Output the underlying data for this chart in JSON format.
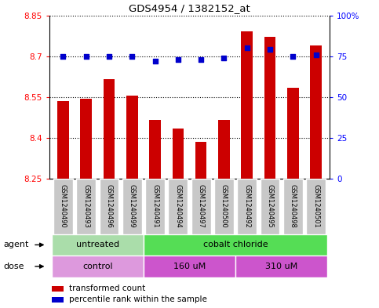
{
  "title": "GDS4954 / 1382152_at",
  "samples": [
    "GSM1240490",
    "GSM1240493",
    "GSM1240496",
    "GSM1240499",
    "GSM1240491",
    "GSM1240494",
    "GSM1240497",
    "GSM1240500",
    "GSM1240492",
    "GSM1240495",
    "GSM1240498",
    "GSM1240501"
  ],
  "transformed_counts": [
    8.535,
    8.545,
    8.615,
    8.555,
    8.465,
    8.435,
    8.385,
    8.465,
    8.79,
    8.77,
    8.585,
    8.74
  ],
  "percentile_ranks": [
    75,
    75,
    75,
    75,
    72,
    73,
    73,
    74,
    80,
    79,
    75,
    76
  ],
  "ylim_left": [
    8.25,
    8.85
  ],
  "ylim_right": [
    0,
    100
  ],
  "yticks_left": [
    8.25,
    8.4,
    8.55,
    8.7,
    8.85
  ],
  "yticks_right": [
    0,
    25,
    50,
    75,
    100
  ],
  "ytick_labels_left": [
    "8.25",
    "8.4",
    "8.55",
    "8.7",
    "8.85"
  ],
  "ytick_labels_right": [
    "0",
    "25",
    "50",
    "75",
    "100%"
  ],
  "hlines": [
    8.4,
    8.55,
    8.7,
    8.85
  ],
  "bar_color": "#cc0000",
  "dot_color": "#0000cc",
  "agent_groups": [
    {
      "label": "untreated",
      "start": 0,
      "end": 4,
      "color": "#aaddaa"
    },
    {
      "label": "cobalt chloride",
      "start": 4,
      "end": 12,
      "color": "#55dd55"
    }
  ],
  "dose_groups": [
    {
      "label": "control",
      "start": 0,
      "end": 4,
      "color": "#dd99dd"
    },
    {
      "label": "160 uM",
      "start": 4,
      "end": 8,
      "color": "#cc55cc"
    },
    {
      "label": "310 uM",
      "start": 8,
      "end": 12,
      "color": "#cc55cc"
    }
  ],
  "sample_box_color": "#c8c8c8",
  "legend_bar_label": "transformed count",
  "legend_dot_label": "percentile rank within the sample",
  "fig_width": 4.83,
  "fig_height": 3.93,
  "dpi": 100
}
